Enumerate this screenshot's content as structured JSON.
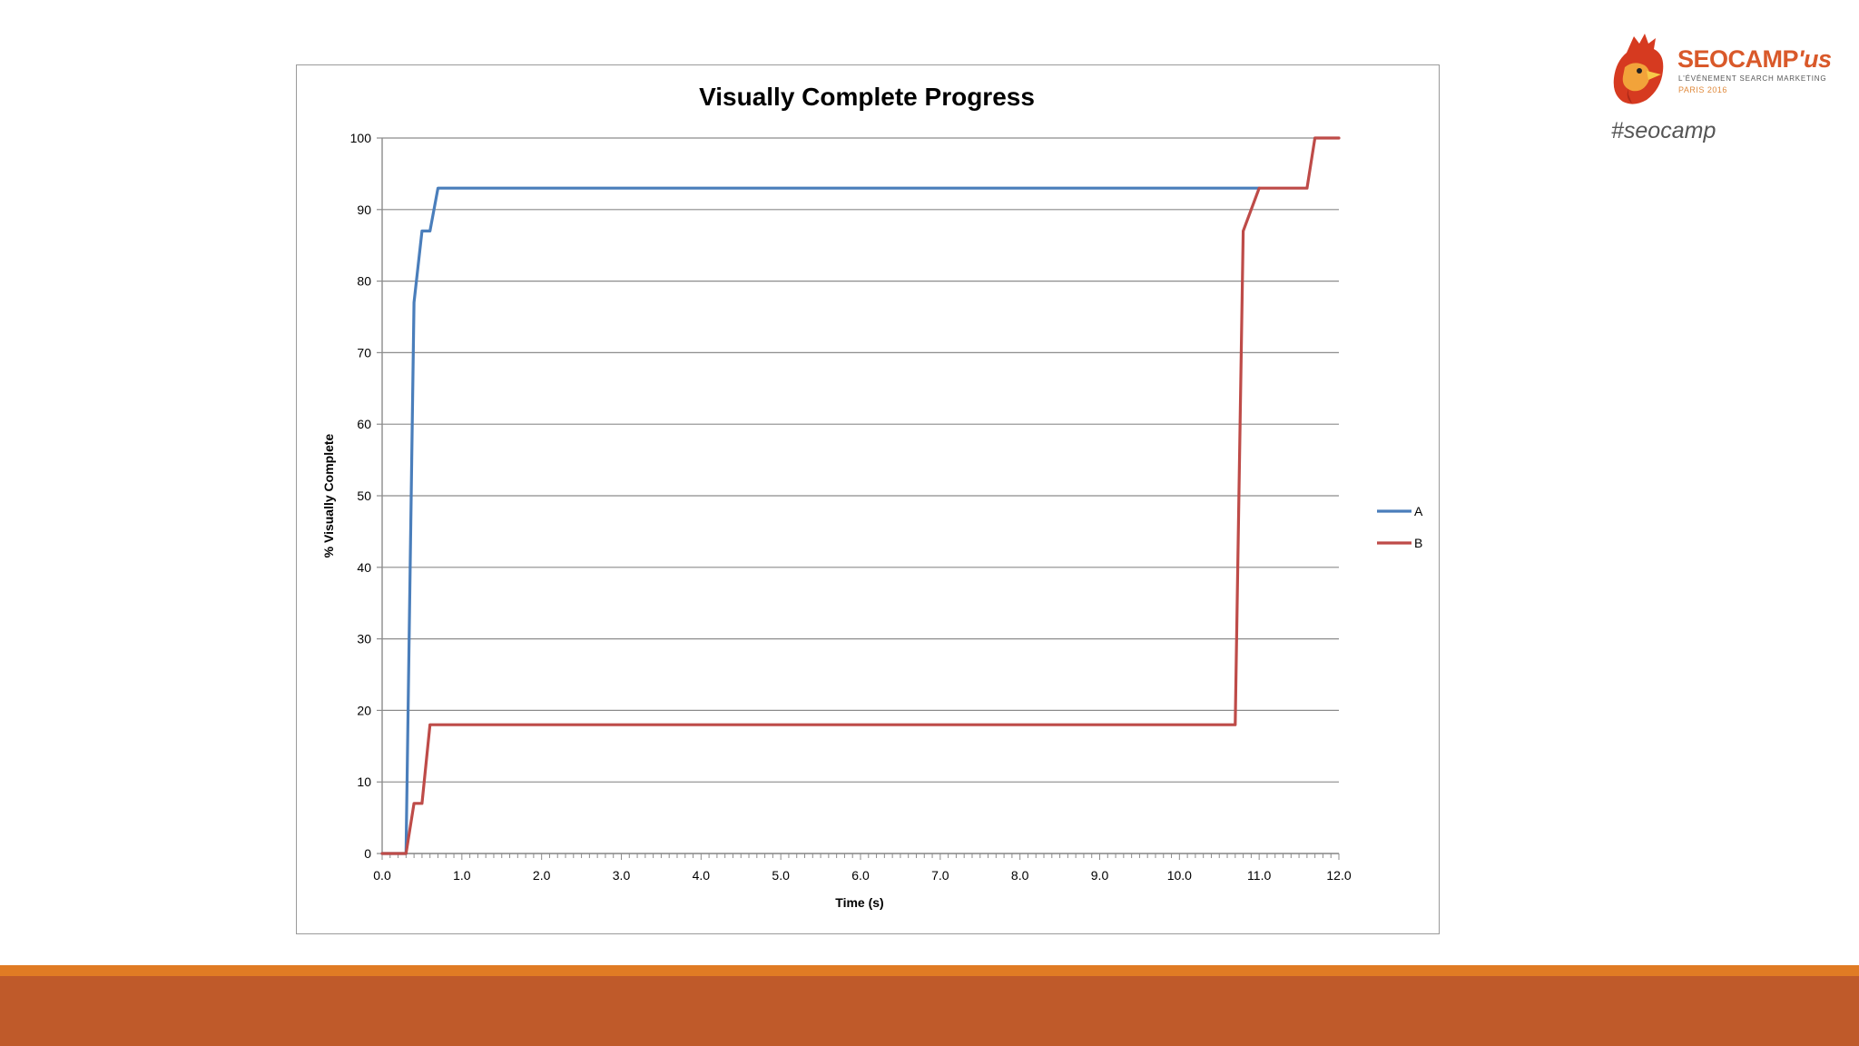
{
  "slide": {
    "hashtag": "#seocamp",
    "logo": {
      "word_main": "SEOCAMP",
      "word_suffix": "'us",
      "tagline": "L'ÉVÉNEMENT SEARCH MARKETING",
      "city": "PARIS 2016",
      "icon": "rooster-icon",
      "color": "#d9592a"
    },
    "bar_colors": {
      "top": "#e07b24",
      "main": "#bf5a2a"
    }
  },
  "chart_data": {
    "type": "line",
    "title": "Visually Complete Progress",
    "xlabel": "Time (s)",
    "ylabel": "% Visually Complete",
    "xlim": [
      0,
      12
    ],
    "ylim": [
      0,
      100
    ],
    "x_ticks": [
      "0.0",
      "1.0",
      "2.0",
      "3.0",
      "4.0",
      "5.0",
      "6.0",
      "7.0",
      "8.0",
      "9.0",
      "10.0",
      "11.0",
      "12.0"
    ],
    "y_ticks": [
      "0",
      "10",
      "20",
      "30",
      "40",
      "50",
      "60",
      "70",
      "80",
      "90",
      "100"
    ],
    "grid": true,
    "legend": "right",
    "series": [
      {
        "name": "A",
        "color": "#4a7ebb",
        "points": [
          [
            0,
            0
          ],
          [
            0.3,
            0
          ],
          [
            0.4,
            77
          ],
          [
            0.5,
            87
          ],
          [
            0.6,
            87
          ],
          [
            0.7,
            93
          ],
          [
            11.0,
            93
          ]
        ]
      },
      {
        "name": "B",
        "color": "#be4b48",
        "points": [
          [
            0,
            0
          ],
          [
            0.3,
            0
          ],
          [
            0.4,
            7
          ],
          [
            0.5,
            7
          ],
          [
            0.6,
            18
          ],
          [
            10.7,
            18
          ],
          [
            10.8,
            87
          ],
          [
            11.0,
            93
          ],
          [
            11.6,
            93
          ],
          [
            11.7,
            100
          ],
          [
            12.0,
            100
          ]
        ]
      }
    ]
  }
}
